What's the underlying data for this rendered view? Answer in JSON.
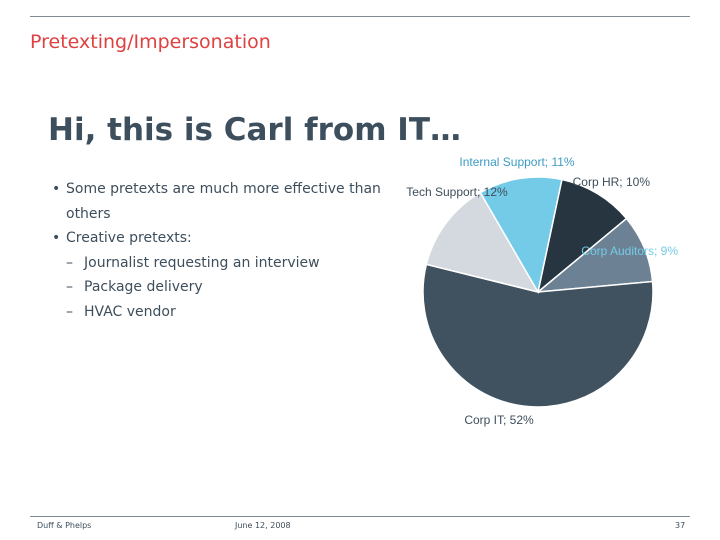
{
  "header": {
    "section_title": "Pretexting/Impersonation"
  },
  "slide": {
    "title": "Hi, this is Carl from IT…",
    "bullets": [
      {
        "level": 1,
        "text": "Some pretexts are much more effective than others"
      },
      {
        "level": 1,
        "text": "Creative pretexts:"
      },
      {
        "level": 2,
        "text": "Journalist requesting an interview"
      },
      {
        "level": 2,
        "text": "Package delivery"
      },
      {
        "level": 2,
        "text": "HVAC vendor"
      }
    ]
  },
  "chart_data": {
    "type": "pie",
    "categories": [
      "Corp HR",
      "Corp Auditors",
      "Corp IT",
      "Tech Support",
      "Internal Support"
    ],
    "values": [
      10,
      9,
      52,
      12,
      11
    ],
    "labels": [
      "Corp HR; 10%",
      "Corp Auditors; 9%",
      "Corp IT; 52%",
      "Tech Support; 12%",
      "Internal Support; 11%"
    ],
    "colors": [
      "#263540",
      "#6c8294",
      "#40525f",
      "#d3d9de",
      "#74cbe8"
    ],
    "label_colors": [
      "#3d4e5c",
      "#74cbe8",
      "#3d4e5c",
      "#3d4e5c",
      "#3d9bc4"
    ]
  },
  "footer": {
    "company": "Duff & Phelps",
    "date": "June 12, 2008",
    "page": "37"
  }
}
